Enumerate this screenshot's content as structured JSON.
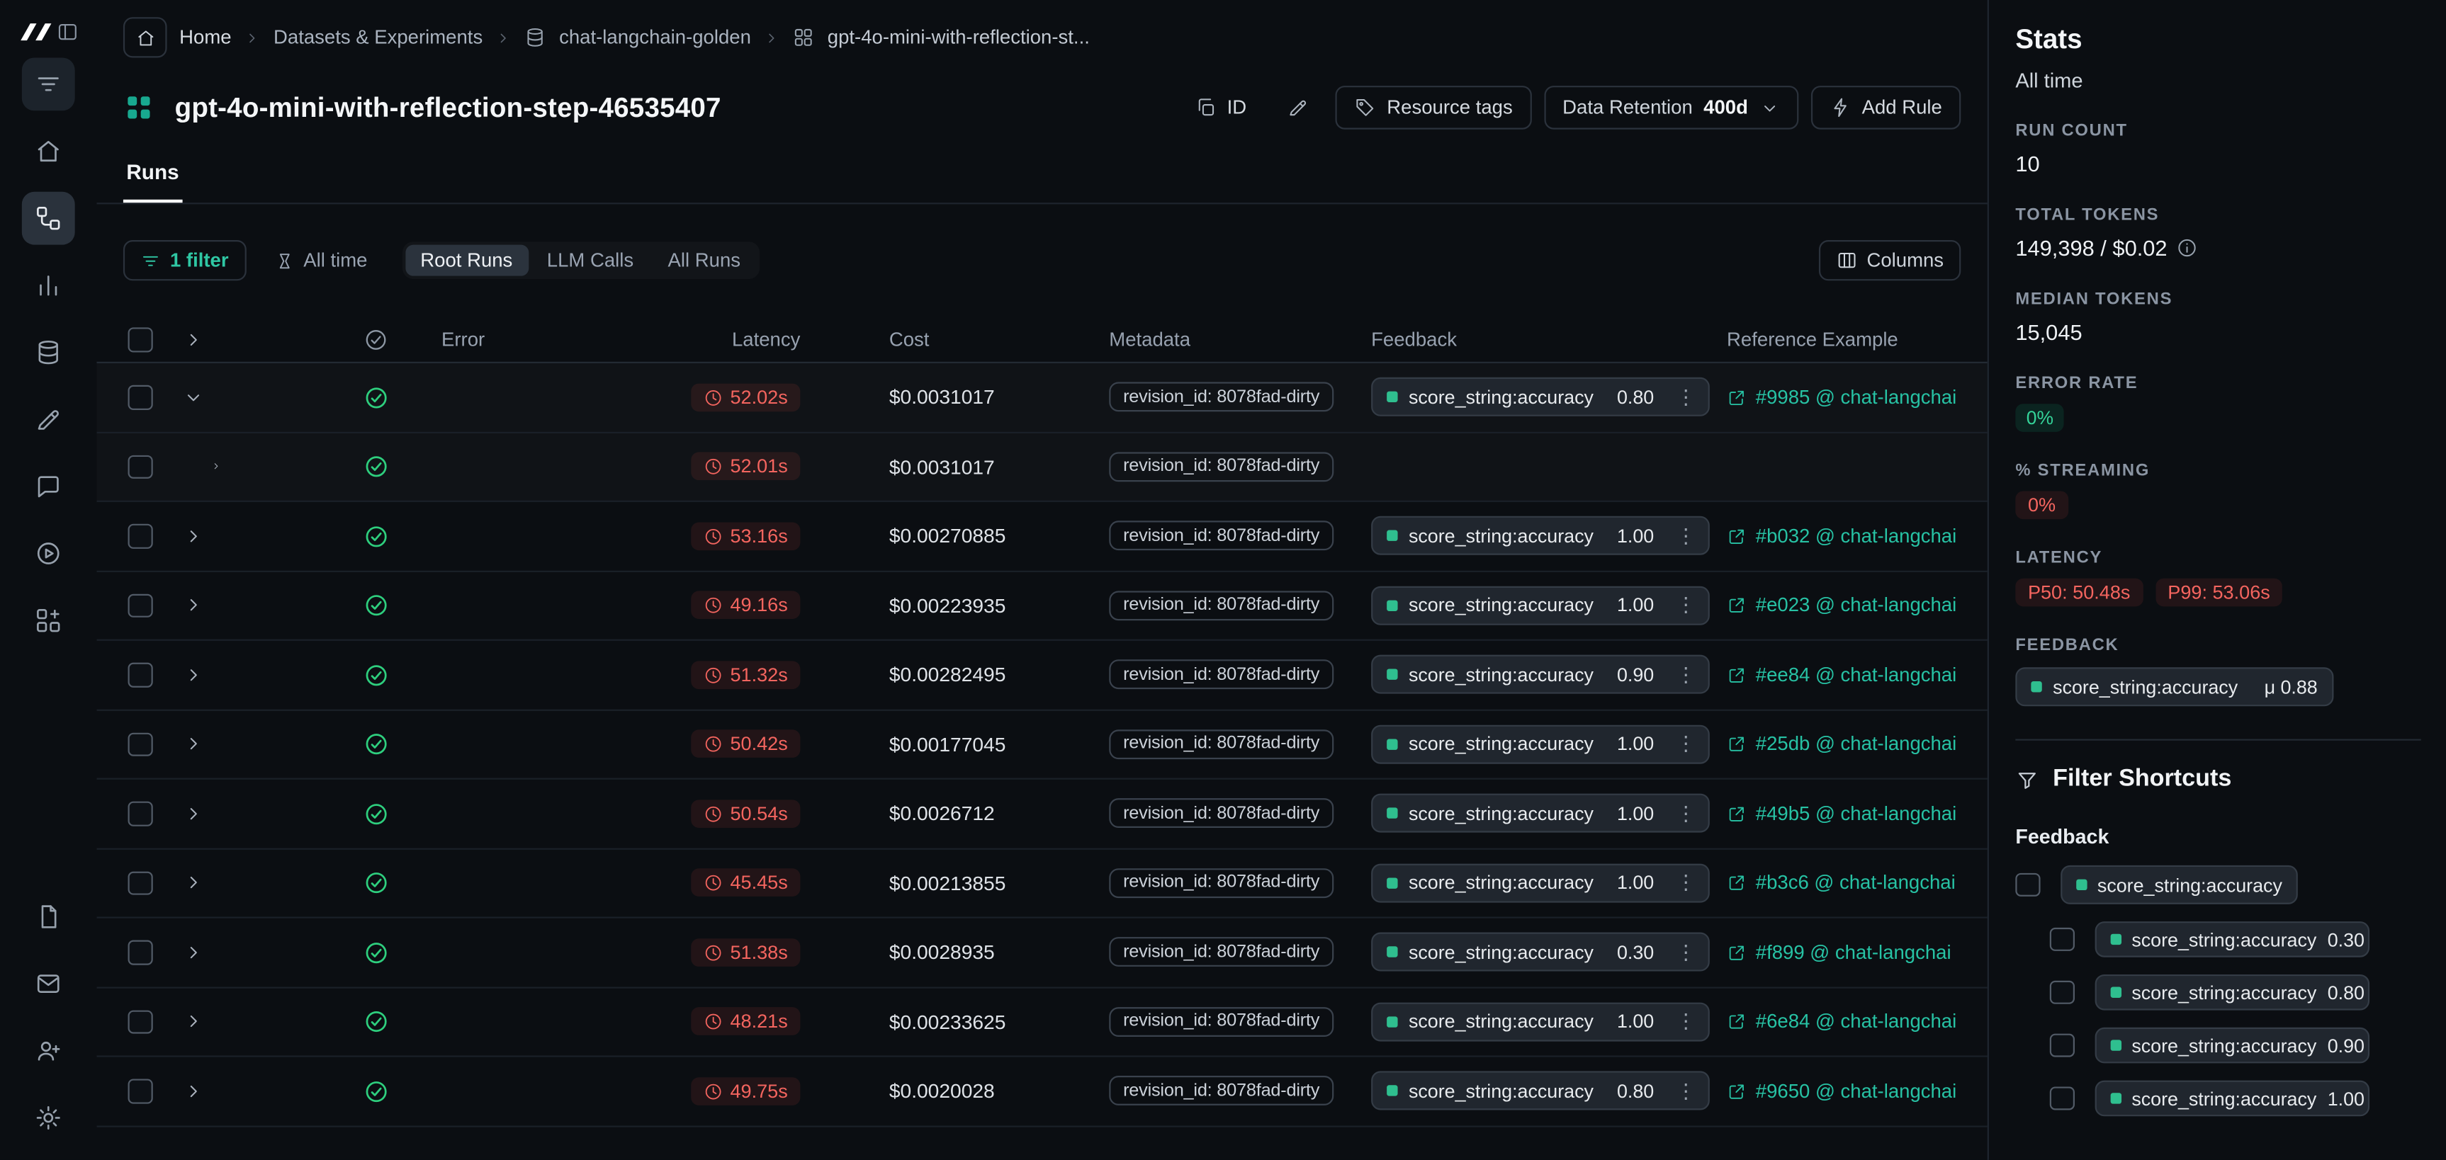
{
  "colors": {
    "accent": "#1ec0a5",
    "red": "#f4655f",
    "green": "#34d399",
    "background": "#0b0e12"
  },
  "icons": {
    "kebab": "⋮"
  },
  "sidebar": {
    "top_items": [
      {
        "name": "nav-filter-icon",
        "icon": "s-lines",
        "boxed": true
      },
      {
        "name": "home-icon",
        "icon": "s-home"
      },
      {
        "name": "tracing-projects-icon",
        "icon": "s-trace",
        "active": true
      },
      {
        "name": "monitoring-icon",
        "icon": "s-chart"
      },
      {
        "name": "datasets-icon",
        "icon": "s-db"
      },
      {
        "name": "annotation-icon",
        "icon": "s-pencil"
      },
      {
        "name": "prompts-icon",
        "icon": "s-chat"
      },
      {
        "name": "playground-icon",
        "icon": "s-play"
      },
      {
        "name": "deployments-icon",
        "icon": "s-blocks"
      }
    ],
    "bottom_items": [
      {
        "name": "docs-icon",
        "icon": "s-file"
      },
      {
        "name": "mail-icon",
        "icon": "s-mail"
      },
      {
        "name": "invite-user-icon",
        "icon": "s-user"
      },
      {
        "name": "settings-icon",
        "icon": "s-gear"
      }
    ]
  },
  "breadcrumb": {
    "items": [
      {
        "label": "Home"
      },
      {
        "label": "Datasets & Experiments"
      },
      {
        "label": "chat-langchain-golden"
      },
      {
        "label": "gpt-4o-mini-with-reflection-st..."
      }
    ]
  },
  "header": {
    "title": "gpt-4o-mini-with-reflection-step-46535407",
    "id_button": "ID",
    "resource_tags": "Resource tags",
    "data_retention_label": "Data Retention",
    "data_retention_value": "400d",
    "add_rule": "Add Rule"
  },
  "tabs": {
    "runs": "Runs"
  },
  "filter_bar": {
    "filter_button": "1 filter",
    "time_button": "All time",
    "segments": {
      "root": "Root Runs",
      "llm": "LLM Calls",
      "all": "All Runs"
    },
    "columns_button": "Columns"
  },
  "table": {
    "columns": [
      "Error",
      "Latency",
      "Cost",
      "Metadata",
      "Feedback",
      "Reference Example"
    ],
    "metadata_value": "revision_id: 8078fad-dirty",
    "feedback_key": "score_string:accuracy",
    "rows": [
      {
        "latency": "52.02s",
        "cost": "$0.0031017",
        "score": "0.80",
        "ref": "#9985 @ chat-langchai",
        "expanded": true,
        "highlight": true
      },
      {
        "latency": "52.01s",
        "cost": "$0.0031017",
        "score": "",
        "ref": "",
        "child": true,
        "highlight": true
      },
      {
        "latency": "53.16s",
        "cost": "$0.00270885",
        "score": "1.00",
        "ref": "#b032 @ chat-langchai"
      },
      {
        "latency": "49.16s",
        "cost": "$0.00223935",
        "score": "1.00",
        "ref": "#e023 @ chat-langchai"
      },
      {
        "latency": "51.32s",
        "cost": "$0.00282495",
        "score": "0.90",
        "ref": "#ee84 @ chat-langchai"
      },
      {
        "latency": "50.42s",
        "cost": "$0.00177045",
        "score": "1.00",
        "ref": "#25db @ chat-langchai"
      },
      {
        "latency": "50.54s",
        "cost": "$0.0026712",
        "score": "1.00",
        "ref": "#49b5 @ chat-langchai"
      },
      {
        "latency": "45.45s",
        "cost": "$0.00213855",
        "score": "1.00",
        "ref": "#b3c6 @ chat-langchai"
      },
      {
        "latency": "51.38s",
        "cost": "$0.0028935",
        "score": "0.30",
        "ref": "#f899 @ chat-langchai"
      },
      {
        "latency": "48.21s",
        "cost": "$0.00233625",
        "score": "1.00",
        "ref": "#6e84 @ chat-langchai"
      },
      {
        "latency": "49.75s",
        "cost": "$0.0020028",
        "score": "0.80",
        "ref": "#9650 @ chat-langchai"
      }
    ]
  },
  "stats": {
    "title": "Stats",
    "subtitle": "All time",
    "run_count_label": "RUN COUNT",
    "run_count": "10",
    "total_tokens_label": "TOTAL TOKENS",
    "total_tokens": "149,398 / $0.02",
    "median_tokens_label": "MEDIAN TOKENS",
    "median_tokens": "15,045",
    "error_rate_label": "ERROR RATE",
    "error_rate": "0%",
    "streaming_label": "% STREAMING",
    "streaming": "0%",
    "latency_label": "LATENCY",
    "p50": "P50: 50.48s",
    "p99": "P99: 53.06s",
    "feedback_label": "FEEDBACK",
    "feedback_key": "score_string:accuracy",
    "feedback_value": "μ 0.88"
  },
  "filter_shortcuts": {
    "title": "Filter Shortcuts",
    "group": "Feedback",
    "parent_label": "score_string:accuracy",
    "options": [
      {
        "label": "score_string:accuracy",
        "value": "0.30"
      },
      {
        "label": "score_string:accuracy",
        "value": "0.80"
      },
      {
        "label": "score_string:accuracy",
        "value": "0.90"
      },
      {
        "label": "score_string:accuracy",
        "value": "1.00"
      }
    ]
  }
}
